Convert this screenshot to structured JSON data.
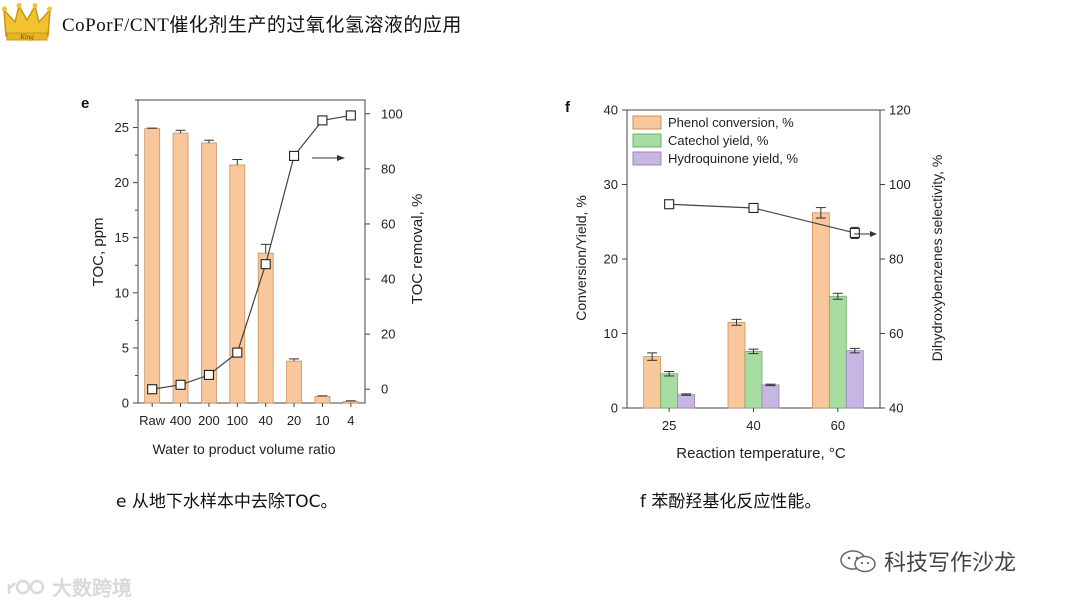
{
  "slide": {
    "title": "CoPorF/CNT催化剂生产的过氧化氢溶液的应用",
    "logo_text": "King"
  },
  "captions": {
    "left": "e  从地下水样本中去除TOC。",
    "right": "f  苯酚羟基化反应性能。"
  },
  "watermarks": {
    "right": "科技写作沙龙",
    "left": "大数跨境"
  },
  "colors": {
    "orange": "#f8c79b",
    "green": "#a6dca0",
    "purple": "#c7b6e2",
    "line": "#444444"
  },
  "chart_data": [
    {
      "panel": "e",
      "type": "bar",
      "categories": [
        "Raw",
        "400",
        "200",
        "100",
        "40",
        "20",
        "10",
        "4"
      ],
      "series": [
        {
          "name": "TOC",
          "axis": "left",
          "type": "bar",
          "values": [
            24.9,
            24.5,
            23.6,
            21.6,
            13.6,
            3.8,
            0.6,
            0.15
          ],
          "errors": [
            0.05,
            0.25,
            0.25,
            0.5,
            0.8,
            0.2,
            0.05,
            0.05
          ]
        },
        {
          "name": "TOC removal",
          "axis": "right",
          "type": "line",
          "values": [
            0,
            1.6,
            5.2,
            13.3,
            45.4,
            84.7,
            97.6,
            99.4
          ]
        }
      ],
      "xlabel": "Water to product volume ratio",
      "ylabel": "TOC, ppm",
      "ylabel_right": "TOC removal, %",
      "ylim": [
        0,
        27.5
      ],
      "ylim_right": [
        -5,
        105
      ],
      "yticks": [
        "0",
        "5",
        "10",
        "15",
        "20",
        "25"
      ],
      "yticks_right": [
        "0",
        "20",
        "40",
        "60",
        "80",
        "100"
      ],
      "arrow": "right"
    },
    {
      "panel": "f",
      "type": "bar",
      "categories": [
        "25",
        "40",
        "60"
      ],
      "series": [
        {
          "name": "Phenol conversion, %",
          "axis": "left",
          "type": "bar",
          "values": [
            6.9,
            11.5,
            26.2
          ],
          "errors": [
            0.5,
            0.4,
            0.7
          ]
        },
        {
          "name": "Catechol yield, %",
          "axis": "left",
          "type": "bar",
          "values": [
            4.6,
            7.6,
            15.0
          ],
          "errors": [
            0.3,
            0.3,
            0.4
          ]
        },
        {
          "name": "Hydroquinone yield, %",
          "axis": "left",
          "type": "bar",
          "values": [
            1.8,
            3.1,
            7.7
          ],
          "errors": [
            0.1,
            0.1,
            0.3
          ]
        },
        {
          "name": "Dihydroxybenzenes selectivity",
          "axis": "right",
          "type": "line",
          "values": [
            94.7,
            93.7,
            87.0
          ],
          "errors": [
            0.4,
            0.4,
            1.5
          ]
        }
      ],
      "xlabel": "Reaction temperature, °C",
      "ylabel": "Conversion/Yield, %",
      "ylabel_right": "Dihydroxybenzenes selectivity, %",
      "ylim": [
        0,
        40
      ],
      "ylim_right": [
        40,
        120
      ],
      "yticks": [
        "0",
        "10",
        "20",
        "30",
        "40"
      ],
      "yticks_right": [
        "40",
        "60",
        "80",
        "100",
        "120"
      ],
      "legend": "top-left",
      "arrow": "right"
    }
  ]
}
